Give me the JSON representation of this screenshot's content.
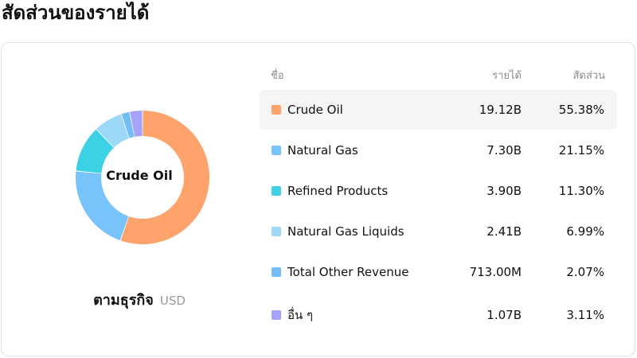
{
  "page": {
    "title": "สัดส่วนของรายได้"
  },
  "chart": {
    "center_label": "Crude Oil",
    "segment_title": "ตามธุรกิจ",
    "currency": "USD"
  },
  "table": {
    "headers": {
      "name": "ชื่อ",
      "revenue": "รายได้",
      "share": "สัดส่วน"
    },
    "rows": [
      {
        "name": "Crude Oil",
        "revenue": "19.12B",
        "share": "55.38%",
        "color": "#FFA36C",
        "active": true
      },
      {
        "name": "Natural Gas",
        "revenue": "7.30B",
        "share": "21.15%",
        "color": "#78C3FB",
        "active": false
      },
      {
        "name": "Refined Products",
        "revenue": "3.90B",
        "share": "11.30%",
        "color": "#3DD1E6",
        "active": false
      },
      {
        "name": "Natural Gas Liquids",
        "revenue": "2.41B",
        "share": "6.99%",
        "color": "#9ED8F9",
        "active": false
      },
      {
        "name": "Total Other Revenue",
        "revenue": "713.00M",
        "share": "2.07%",
        "color": "#72BCF7",
        "active": false
      },
      {
        "name": "อื่น ๆ",
        "revenue": "1.07B",
        "share": "3.11%",
        "color": "#A5A3F8",
        "active": false
      }
    ]
  },
  "chart_data": {
    "type": "pie",
    "categories": [
      "Crude Oil",
      "Natural Gas",
      "Refined Products",
      "Natural Gas Liquids",
      "Total Other Revenue",
      "อื่น ๆ"
    ],
    "values": [
      55.38,
      21.15,
      11.3,
      6.99,
      2.07,
      3.11
    ],
    "colors": [
      "#FFA36C",
      "#78C3FB",
      "#3DD1E6",
      "#9ED8F9",
      "#72BCF7",
      "#A5A3F8"
    ],
    "donut": true,
    "highlighted": "Crude Oil"
  }
}
